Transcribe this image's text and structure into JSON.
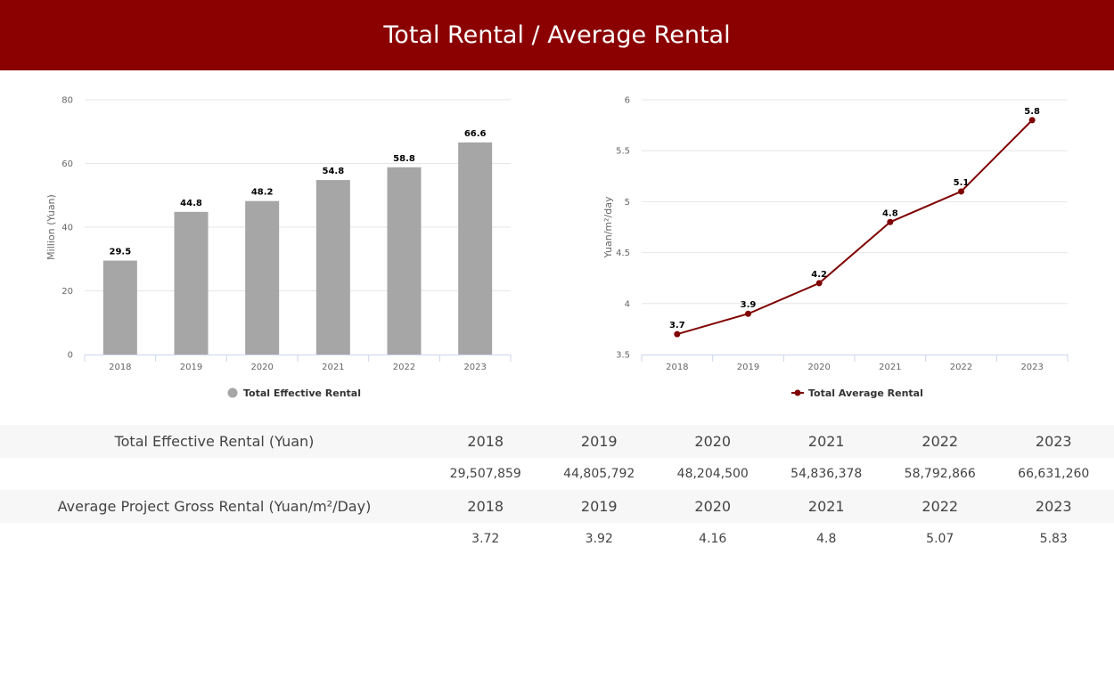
{
  "page": {
    "title": "Total Rental / Average Rental"
  },
  "chart_data": [
    {
      "type": "bar",
      "categories": [
        "2018",
        "2019",
        "2020",
        "2021",
        "2022",
        "2023"
      ],
      "series": [
        {
          "name": "Total Effective Rental",
          "values": [
            29.5,
            44.8,
            48.2,
            54.8,
            58.8,
            66.6
          ],
          "color": "#a6a6a6"
        }
      ],
      "data_labels": [
        "29.5",
        "44.8",
        "48.2",
        "54.8",
        "58.8",
        "66.6"
      ],
      "ylabel": "Million (Yuan)",
      "ylim": [
        0,
        80
      ],
      "yticks": [
        0,
        20,
        40,
        60,
        80
      ],
      "grid": true,
      "legend": "bottom-center"
    },
    {
      "type": "line",
      "categories": [
        "2018",
        "2019",
        "2020",
        "2021",
        "2022",
        "2023"
      ],
      "series": [
        {
          "name": "Total Average Rental",
          "values": [
            3.7,
            3.9,
            4.2,
            4.8,
            5.1,
            5.8
          ],
          "color": "#7f0000"
        }
      ],
      "data_labels": [
        "3.7",
        "3.9",
        "4.2",
        "4.8",
        "5.1",
        "5.8"
      ],
      "ylabel": "Yuan/m²/day",
      "ylim": [
        3.5,
        6
      ],
      "yticks": [
        3.5,
        4,
        4.5,
        5,
        5.5,
        6
      ],
      "ytick_labels": [
        "3.5",
        "4",
        "4.5",
        "5",
        "5.5",
        "6"
      ],
      "grid": true,
      "legend": "bottom-center"
    }
  ],
  "table": {
    "rows": [
      {
        "label": "Total Effective Rental (Yuan)",
        "years": [
          "2018",
          "2019",
          "2020",
          "2021",
          "2022",
          "2023"
        ],
        "values": [
          "29,507,859",
          "44,805,792",
          "48,204,500",
          "54,836,378",
          "58,792,866",
          "66,631,260"
        ]
      },
      {
        "label": "Average Project Gross Rental (Yuan/m²/Day)",
        "years": [
          "2018",
          "2019",
          "2020",
          "2021",
          "2022",
          "2023"
        ],
        "values": [
          "3.72",
          "3.92",
          "4.16",
          "4.8",
          "5.07",
          "5.83"
        ]
      }
    ]
  }
}
